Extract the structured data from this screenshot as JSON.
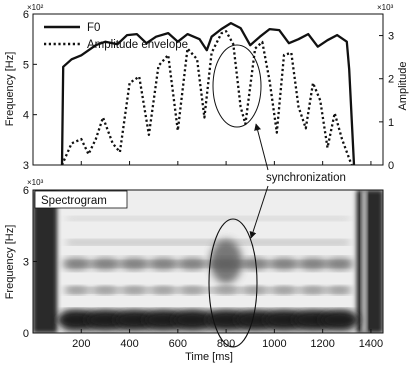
{
  "chart_data": [
    {
      "type": "line",
      "title": "",
      "xlim": [
        0,
        1450
      ],
      "ylabel": "Frequency [Hz]",
      "y2label": "Amplitude",
      "y_exponent": "×10²",
      "y2_exponent": "×10³",
      "ylim": [
        3,
        6
      ],
      "yticks": [
        "3",
        "4",
        "5",
        "6"
      ],
      "y2lim": [
        0,
        3.5
      ],
      "y2ticks": [
        "0",
        "1",
        "2",
        "3"
      ],
      "legend_position": "top-left",
      "series": [
        {
          "name": "F0",
          "axis": "left",
          "style": "solid",
          "x": [
            120,
            125,
            160,
            200,
            260,
            300,
            350,
            390,
            430,
            470,
            510,
            560,
            600,
            640,
            690,
            720,
            740,
            780,
            820,
            860,
            900,
            940,
            980,
            1020,
            1060,
            1100,
            1140,
            1180,
            1220,
            1260,
            1300,
            1310,
            1330
          ],
          "values": [
            3.0,
            4.95,
            5.1,
            5.18,
            5.38,
            5.45,
            5.4,
            5.58,
            5.6,
            5.42,
            5.55,
            5.62,
            5.45,
            5.6,
            5.5,
            5.28,
            5.55,
            5.7,
            5.82,
            5.72,
            5.38,
            5.55,
            5.7,
            5.68,
            5.42,
            5.5,
            5.6,
            5.35,
            5.48,
            5.58,
            5.45,
            4.9,
            3.0
          ]
        },
        {
          "name": "Amplitude envelope",
          "axis": "right",
          "style": "dotted",
          "x": [
            120,
            160,
            200,
            230,
            260,
            290,
            330,
            360,
            400,
            440,
            480,
            520,
            560,
            600,
            640,
            680,
            710,
            740,
            780,
            800,
            830,
            860,
            880,
            920,
            950,
            980,
            1010,
            1040,
            1070,
            1100,
            1130,
            1160,
            1190,
            1220,
            1250,
            1280,
            1320
          ],
          "values": [
            0,
            0.5,
            0.6,
            0.25,
            0.6,
            1.1,
            0.5,
            0.3,
            1.9,
            2.05,
            0.7,
            2.3,
            2.55,
            0.8,
            2.7,
            2.45,
            1.1,
            2.6,
            3.05,
            3.1,
            2.8,
            1.35,
            0.95,
            2.7,
            2.85,
            1.95,
            0.75,
            2.55,
            2.6,
            1.35,
            0.85,
            1.9,
            1.5,
            0.4,
            1.2,
            0.6,
            0
          ]
        }
      ]
    },
    {
      "type": "heatmap",
      "title": "Spectrogram",
      "xlabel": "Time [ms]",
      "xlim": [
        0,
        1450
      ],
      "xticks": [
        200,
        400,
        600,
        800,
        1000,
        1200,
        1400
      ],
      "ylabel": "Frequency [Hz]",
      "y_exponent": "×10³",
      "ylim": [
        0,
        6
      ],
      "yticks": [
        "0",
        "3",
        "6"
      ]
    }
  ],
  "annotations": {
    "sync_label": "synchronization"
  },
  "colors": {
    "line": "#111111",
    "background": "#ffffff"
  }
}
